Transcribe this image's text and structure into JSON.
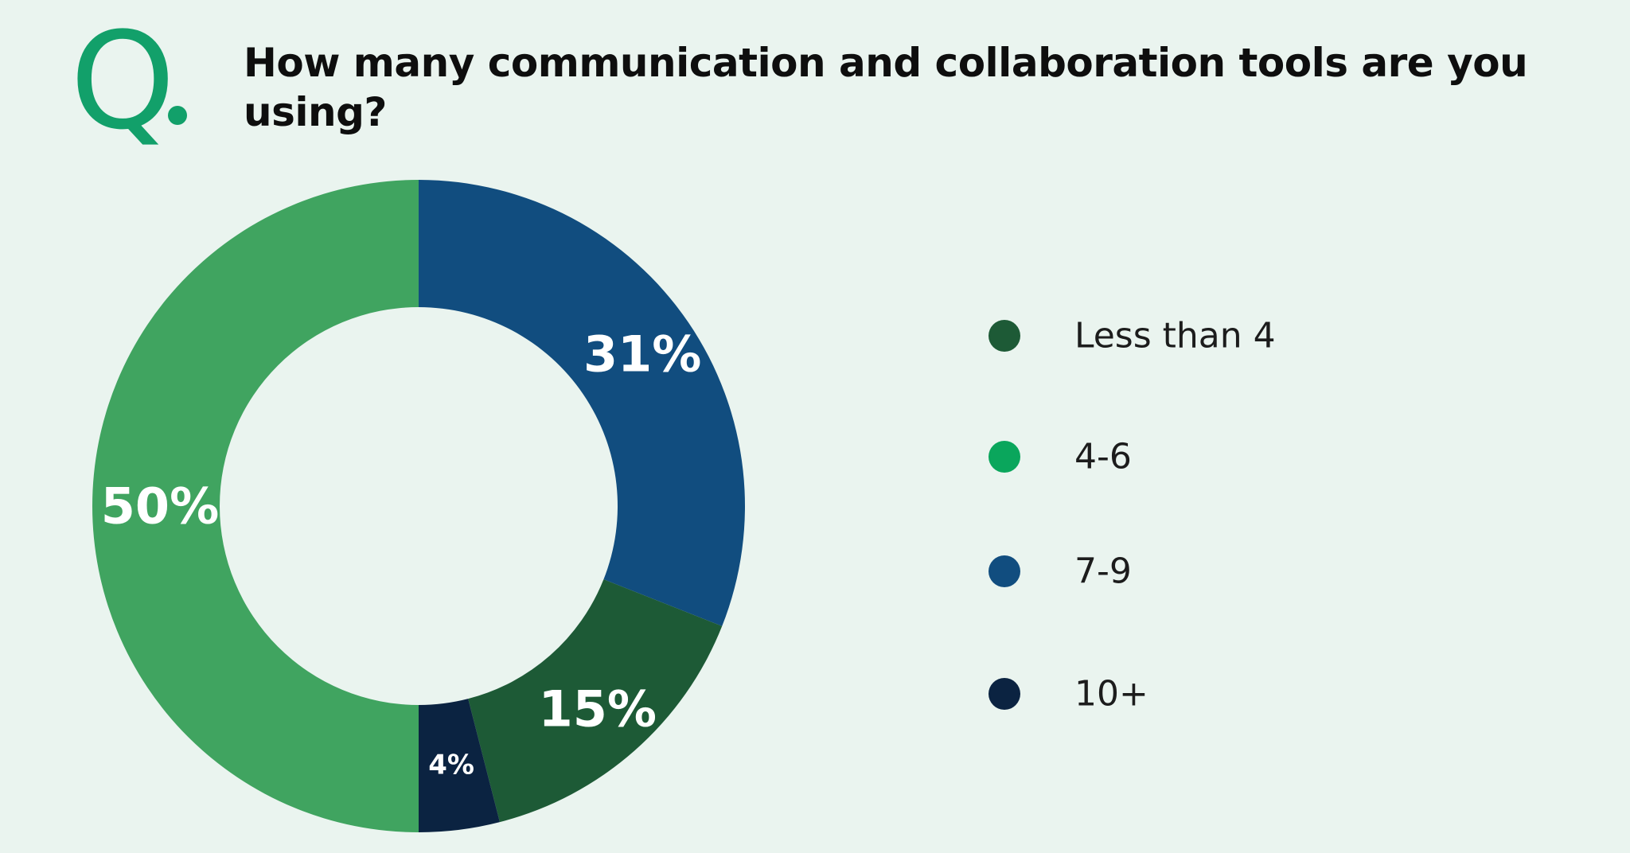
{
  "header": {
    "q_letter": "Q",
    "question": "How many communication and collaboration tools are you using?"
  },
  "chart_data": {
    "type": "pie",
    "style": "donut",
    "title": "How many communication and collaboration tools are you using?",
    "categories": [
      "Less than 4",
      "4-6",
      "7-9",
      "10+"
    ],
    "values": [
      15,
      50,
      31,
      4
    ],
    "labels": [
      "15%",
      "50%",
      "31%",
      "4%"
    ],
    "colors": [
      "#1d5a36",
      "#40a460",
      "#114d7f",
      "#0b2341"
    ],
    "legend_colors": [
      "#1d5a36",
      "#0aa65c",
      "#114d7f",
      "#0b2341"
    ],
    "legend": [
      "Less than 4",
      "4-6",
      "7-9",
      "10+"
    ],
    "legend_position": "right",
    "slice_order_clockwise_from_top": [
      "7-9",
      "Less than 4",
      "10+",
      "4-6"
    ]
  }
}
